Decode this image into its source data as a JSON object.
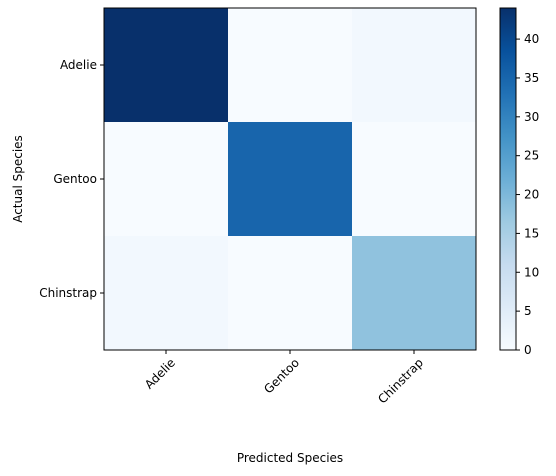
{
  "chart_data": {
    "type": "heatmap",
    "row_labels": [
      "Adelie",
      "Gentoo",
      "Chinstrap"
    ],
    "col_labels": [
      "Adelie",
      "Gentoo",
      "Chinstrap"
    ],
    "values": [
      [
        44,
        0,
        1
      ],
      [
        0,
        35,
        0
      ],
      [
        1,
        0,
        18
      ]
    ],
    "xlabel": "Predicted Species",
    "ylabel": "Actual Species",
    "colormap": "Blues",
    "color_range": [
      0,
      44
    ],
    "colorbar_ticks": [
      0,
      5,
      10,
      15,
      20,
      25,
      30,
      35,
      40
    ],
    "colorbar_tick_labels": [
      "0",
      "5",
      "10",
      "15",
      "20",
      "25",
      "30",
      "35",
      "40"
    ],
    "x_tick_rotation_deg": 45,
    "grid": false
  }
}
